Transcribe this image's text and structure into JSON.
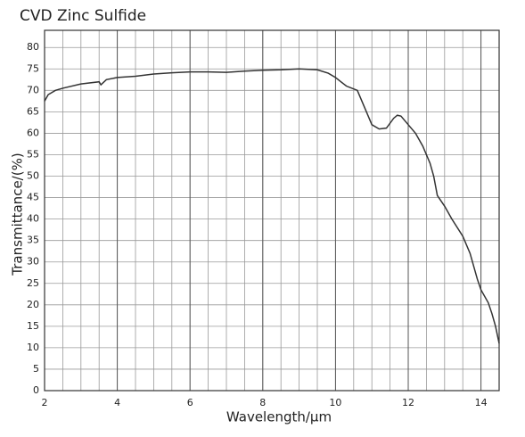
{
  "chart_data": {
    "type": "line",
    "title": "CVD Zinc Sulfide",
    "x_label": "Wavelength/µm",
    "y_label": "Transmittance/(%)",
    "x": [
      2.0,
      2.1,
      2.3,
      2.5,
      3.0,
      3.5,
      3.55,
      3.7,
      4.0,
      4.5,
      5.0,
      5.5,
      6.0,
      6.5,
      7.0,
      7.5,
      8.0,
      8.5,
      9.0,
      9.5,
      9.8,
      10.0,
      10.3,
      10.6,
      10.8,
      11.0,
      11.2,
      11.4,
      11.6,
      11.7,
      11.8,
      12.0,
      12.2,
      12.4,
      12.6,
      12.7,
      12.8,
      13.0,
      13.2,
      13.5,
      13.7,
      13.9,
      14.0,
      14.2,
      14.3,
      14.4,
      14.5
    ],
    "values": [
      67.5,
      69,
      70,
      70.5,
      71.5,
      72,
      71.3,
      72.5,
      73,
      73.3,
      73.8,
      74.1,
      74.3,
      74.3,
      74.2,
      74.5,
      74.7,
      74.8,
      75,
      74.8,
      74,
      73,
      71,
      70,
      66,
      62,
      61,
      61.2,
      63.5,
      64.2,
      64,
      62,
      60,
      57,
      53,
      50,
      45.5,
      43,
      40,
      36,
      32,
      26,
      23.5,
      20.5,
      18,
      15,
      11
    ],
    "color": "#333333",
    "xlim": [
      2,
      14.5
    ],
    "ylim": [
      0,
      84
    ],
    "xticks": [
      2,
      4,
      6,
      8,
      10,
      12,
      14
    ],
    "yticks": [
      0,
      5,
      10,
      15,
      20,
      25,
      30,
      35,
      40,
      45,
      50,
      55,
      60,
      65,
      70,
      75,
      80
    ],
    "x_gridlines": [
      2.5,
      3,
      3.5,
      4,
      4.5,
      5,
      5.5,
      6,
      6.5,
      7,
      7.5,
      8,
      8.5,
      9,
      9.5,
      10,
      10.5,
      11,
      11.5,
      12,
      12.5,
      13,
      13.5,
      14
    ],
    "grid": true
  }
}
